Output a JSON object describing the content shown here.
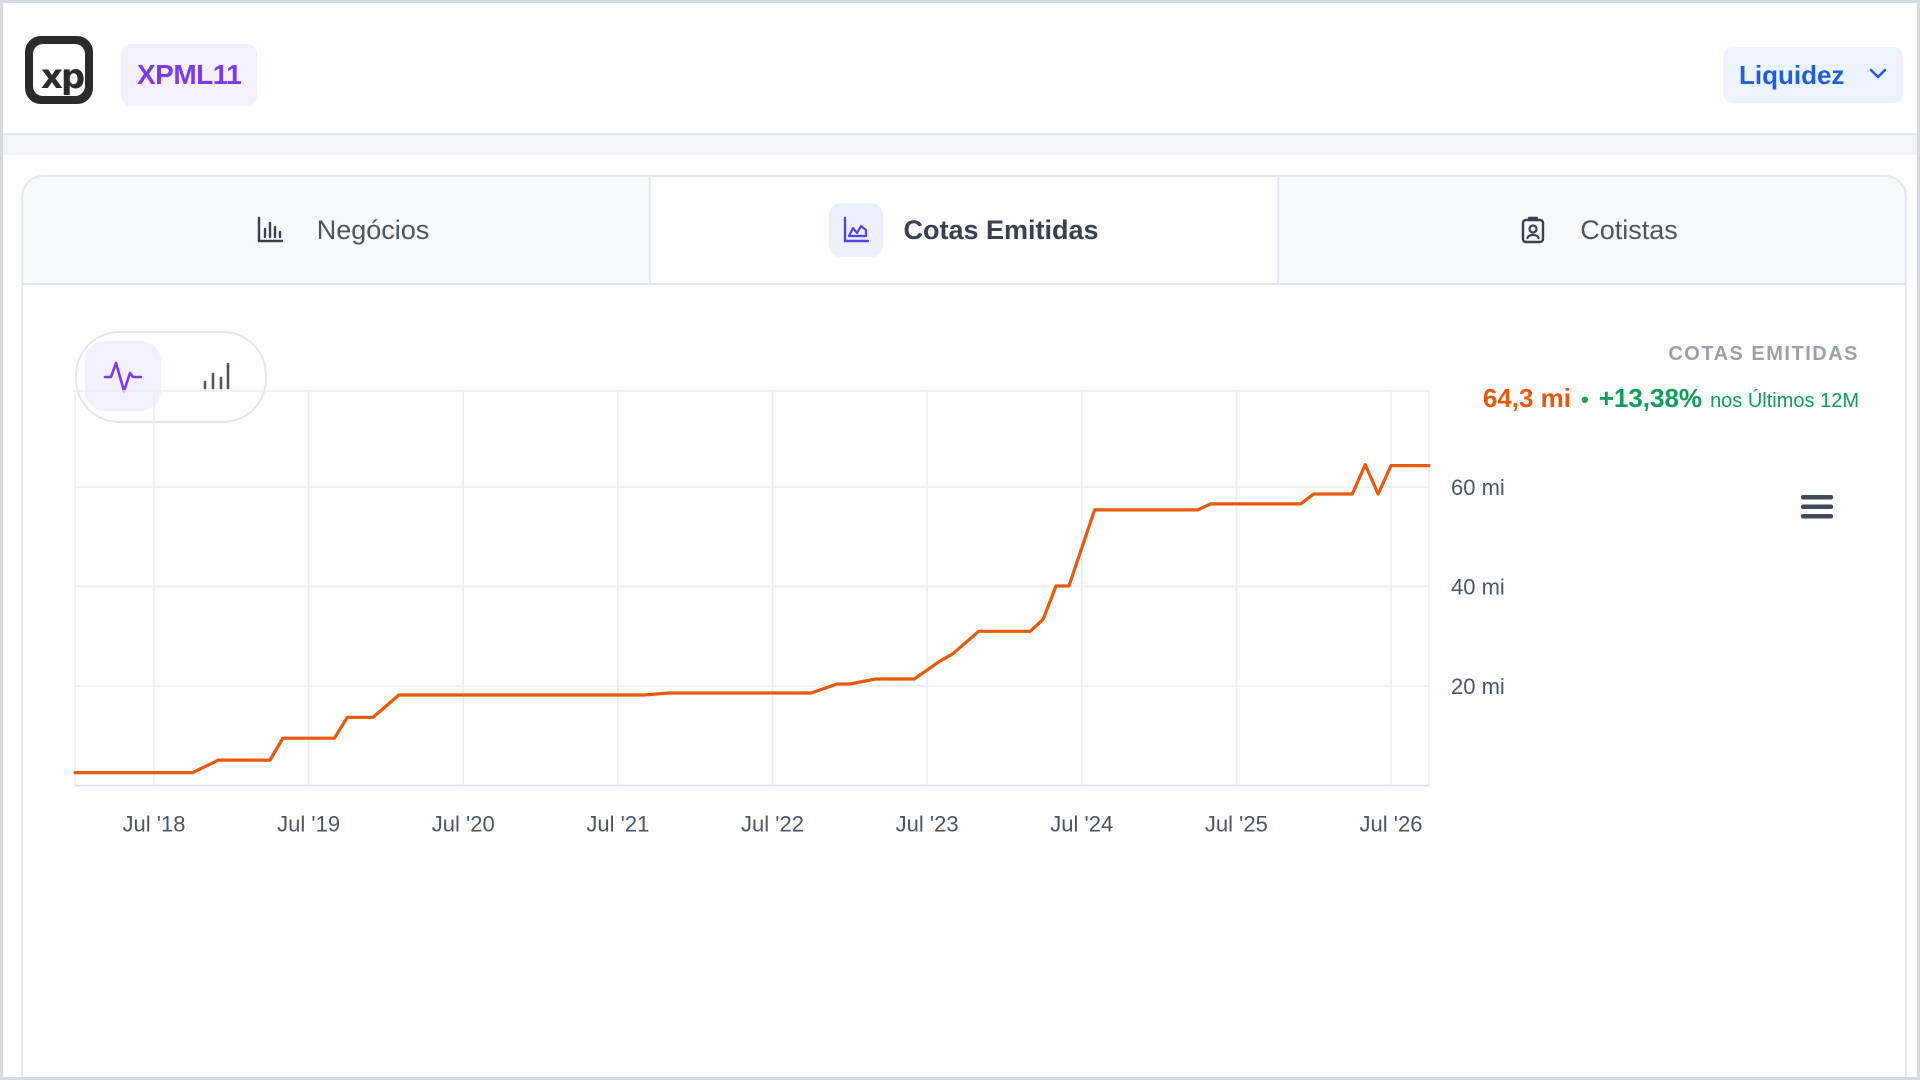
{
  "header": {
    "logo_text": "xp",
    "ticker": "XPML11",
    "liquidity_button": "Liquidez"
  },
  "tabs": [
    {
      "label": "Negócios",
      "icon": "bar-chart-icon",
      "active": false
    },
    {
      "label": "Cotas Emitidas",
      "icon": "area-chart-icon",
      "active": true
    },
    {
      "label": "Cotistas",
      "icon": "badge-id-icon",
      "active": false
    }
  ],
  "view_toggle": {
    "line_icon": "line-pulse-icon",
    "bar_icon": "bar-chart-icon",
    "selected": "line"
  },
  "summary": {
    "label": "COTAS EMITIDAS",
    "value": "64,3 mi",
    "separator": "•",
    "change": "+13,38%",
    "change_note": "nos Últimos 12M"
  },
  "colors": {
    "line": "#e8590c",
    "accent": "#7c3aed",
    "positive": "#0f9d58",
    "link": "#1f5fd9"
  },
  "chart_data": {
    "type": "line",
    "title": "",
    "xlabel": "",
    "ylabel": "",
    "x_ticks": [
      "Jul '18",
      "Jul '19",
      "Jul '20",
      "Jul '21",
      "Jul '22",
      "Jul '23",
      "Jul '24",
      "Jul '25",
      "Jul '26"
    ],
    "y_ticks": [
      {
        "value": 20,
        "label": "20 mi"
      },
      {
        "value": 40,
        "label": "40 mi"
      },
      {
        "value": 60,
        "label": "60 mi"
      }
    ],
    "ylim": [
      0,
      80
    ],
    "xlim": [
      "2018-01",
      "2026-11"
    ],
    "grid": true,
    "series": [
      {
        "name": "",
        "points": [
          [
            "2018-01",
            2.6
          ],
          [
            "2018-04",
            2.6
          ],
          [
            "2018-07",
            2.6
          ],
          [
            "2018-10",
            2.6
          ],
          [
            "2018-12",
            5.1
          ],
          [
            "2019-02",
            5.1
          ],
          [
            "2019-04",
            5.1
          ],
          [
            "2019-05",
            9.5
          ],
          [
            "2019-07",
            9.5
          ],
          [
            "2019-09",
            9.5
          ],
          [
            "2019-10",
            13.7
          ],
          [
            "2019-12",
            13.7
          ],
          [
            "2020-02",
            18.2
          ],
          [
            "2020-06",
            18.2
          ],
          [
            "2020-12",
            18.2
          ],
          [
            "2021-06",
            18.2
          ],
          [
            "2021-09",
            18.2
          ],
          [
            "2021-11",
            18.6
          ],
          [
            "2022-03",
            18.6
          ],
          [
            "2022-07",
            18.6
          ],
          [
            "2022-10",
            18.6
          ],
          [
            "2022-12",
            20.4
          ],
          [
            "2023-01",
            20.4
          ],
          [
            "2023-03",
            21.4
          ],
          [
            "2023-06",
            21.4
          ],
          [
            "2023-08",
            25.0
          ],
          [
            "2023-09",
            26.5
          ],
          [
            "2023-11",
            31.0
          ],
          [
            "2024-01",
            31.0
          ],
          [
            "2024-03",
            31.0
          ],
          [
            "2024-04",
            33.4
          ],
          [
            "2024-05",
            40.1
          ],
          [
            "2024-06",
            40.1
          ],
          [
            "2024-08",
            55.4
          ],
          [
            "2024-12",
            55.4
          ],
          [
            "2025-04",
            55.4
          ],
          [
            "2025-05",
            56.6
          ],
          [
            "2025-09",
            56.6
          ],
          [
            "2025-12",
            56.6
          ],
          [
            "2026-01",
            58.6
          ],
          [
            "2026-04",
            58.6
          ],
          [
            "2026-05",
            64.5
          ],
          [
            "2026-06",
            58.6
          ],
          [
            "2026-07",
            64.3
          ],
          [
            "2026-09",
            64.3
          ],
          [
            "2026-11",
            64.3
          ]
        ]
      }
    ]
  }
}
